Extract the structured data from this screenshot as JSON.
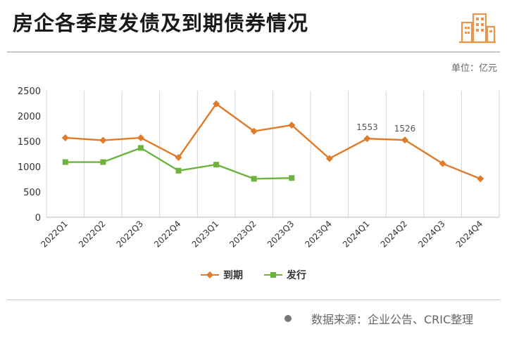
{
  "header": {
    "title": "房企各季度发债及到期债券情况"
  },
  "unit_label": "单位：亿元",
  "legend": {
    "items": [
      {
        "label": "到期",
        "color": "#E07B2A",
        "marker": "diamond"
      },
      {
        "label": "发行",
        "color": "#6DB33F",
        "marker": "square"
      }
    ]
  },
  "source": {
    "text": "数据来源：企业公告、CRIC整理"
  },
  "colors": {
    "maturity": "#E07B2A",
    "issuance": "#6DB33F",
    "grid": "#d4d4d4",
    "logo": "#E8964A"
  },
  "icons": {
    "logo": "building-logo-icon",
    "source_bullet": "dot-icon"
  },
  "chart_data": {
    "type": "line",
    "categories": [
      "2022Q1",
      "2022Q2",
      "2022Q3",
      "2022Q4",
      "2023Q1",
      "2023Q2",
      "2023Q3",
      "2023Q4",
      "2024Q1",
      "2024Q2",
      "2024Q3",
      "2024Q4"
    ],
    "series": [
      {
        "name": "到期",
        "values": [
          1570,
          1520,
          1570,
          1180,
          2240,
          1700,
          1820,
          1160,
          1553,
          1526,
          1060,
          760
        ]
      },
      {
        "name": "发行",
        "values": [
          1090,
          1090,
          1370,
          920,
          1040,
          760,
          775,
          null,
          null,
          null,
          null,
          null
        ]
      }
    ],
    "data_labels": [
      {
        "series": "到期",
        "category": "2024Q1",
        "text": "1553"
      },
      {
        "series": "到期",
        "category": "2024Q2",
        "text": "1526"
      }
    ],
    "yticks": [
      "0",
      "500",
      "1000",
      "1500",
      "2000",
      "2500"
    ],
    "ylim": [
      0,
      2500
    ],
    "title": "",
    "xlabel": "",
    "ylabel": "",
    "grid": "vertical",
    "legend_position": "bottom"
  }
}
